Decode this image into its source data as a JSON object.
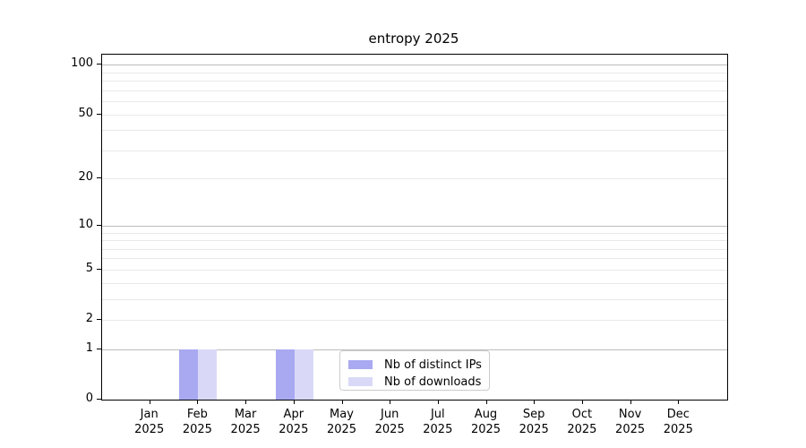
{
  "chart_data": {
    "type": "bar",
    "title": "entropy 2025",
    "categories": [
      "Jan\n2025",
      "Feb\n2025",
      "Mar\n2025",
      "Apr\n2025",
      "May\n2025",
      "Jun\n2025",
      "Jul\n2025",
      "Aug\n2025",
      "Sep\n2025",
      "Oct\n2025",
      "Nov\n2025",
      "Dec\n2025"
    ],
    "series": [
      {
        "name": "Nb of distinct IPs",
        "color": "#a9a9f1",
        "values": [
          0,
          1,
          0,
          1,
          0,
          0,
          0,
          0,
          0,
          0,
          0,
          0
        ]
      },
      {
        "name": "Nb of downloads",
        "color": "#d9d9f7",
        "values": [
          0,
          1,
          0,
          1,
          0,
          0,
          0,
          0,
          0,
          0,
          0,
          0
        ]
      }
    ],
    "yscale": "log1p",
    "ylim": [
      0,
      115
    ],
    "yticks": [
      0,
      1,
      2,
      5,
      10,
      20,
      50,
      100
    ],
    "grid_major": [
      1,
      10,
      100
    ],
    "grid_minor": [
      2,
      3,
      4,
      5,
      6,
      7,
      8,
      9,
      20,
      30,
      40,
      50,
      60,
      70,
      80,
      90
    ],
    "grid": "horizontal",
    "legend_position": "lower center",
    "colors": {
      "grid_major": "#bcbcbc",
      "grid_minor": "#e9e9e9",
      "spine": "#000000",
      "text": "#000000",
      "legend_border": "#cccccc"
    }
  }
}
